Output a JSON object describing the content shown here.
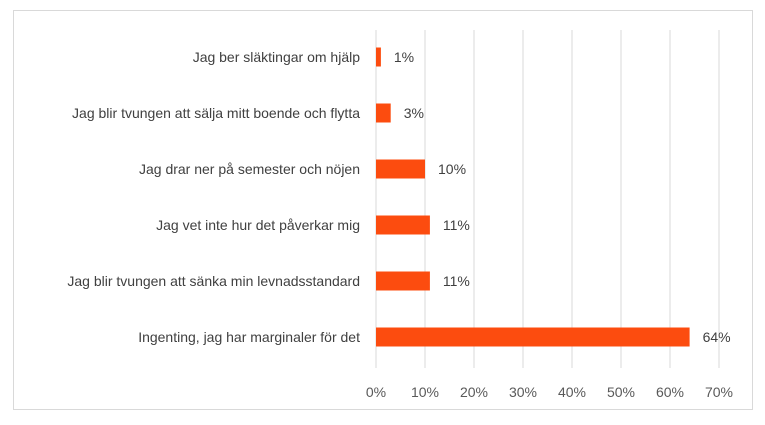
{
  "chart_data": {
    "type": "bar",
    "orientation": "horizontal",
    "categories": [
      "Jag ber släktingar om hjälp",
      "Jag blir tvungen att sälja mitt boende och flytta",
      "Jag drar ner på semester och nöjen",
      "Jag vet inte hur det påverkar mig",
      "Jag blir tvungen att sänka min levnadsstandard",
      "Ingenting, jag har marginaler för det"
    ],
    "values": [
      1,
      3,
      10,
      11,
      11,
      64
    ],
    "value_labels": [
      "1%",
      "3%",
      "10%",
      "11%",
      "11%",
      "64%"
    ],
    "x_ticks": [
      "0%",
      "10%",
      "20%",
      "30%",
      "40%",
      "50%",
      "60%",
      "70%"
    ],
    "xlim": [
      0,
      70
    ],
    "bar_color": "#fc4c0f",
    "grid": true,
    "legend": "none"
  }
}
